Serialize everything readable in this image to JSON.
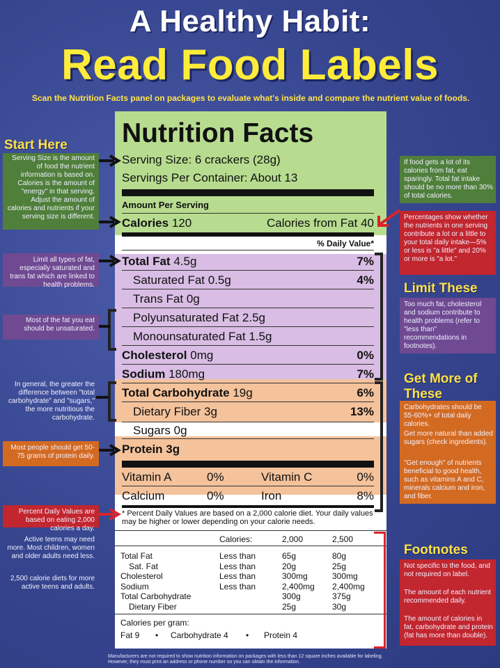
{
  "header": {
    "title_line1": "A Healthy Habit:",
    "title_line2": "Read Food Labels",
    "subtitle": "Scan the Nutrition Facts panel on packages to evaluate what's inside and compare the nutrient value of foods."
  },
  "label": {
    "title": "Nutrition Facts",
    "serving_size": "Serving Size:  6 crackers (28g)",
    "servings_per_container": "Servings Per Container:  About 13",
    "amount_per_serving": "Amount Per Serving",
    "calories_label": "Calories",
    "calories_value": "120",
    "calories_fat": "Calories from Fat 40",
    "daily_value_header": "% Daily Value*",
    "rows": {
      "total_fat": {
        "label": "Total Fat",
        "amount": "4.5g",
        "dv": "7%"
      },
      "saturated_fat": {
        "label": "Saturated Fat",
        "amount": "0.5g",
        "dv": "4%"
      },
      "trans_fat": {
        "label": "Trans Fat",
        "amount": "0g"
      },
      "poly_fat": {
        "label": "Polyunsaturated Fat",
        "amount": "2.5g"
      },
      "mono_fat": {
        "label": "Monounsaturated Fat",
        "amount": "1.5g"
      },
      "cholesterol": {
        "label": "Cholesterol",
        "amount": "0mg",
        "dv": "0%"
      },
      "sodium": {
        "label": "Sodium",
        "amount": "180mg",
        "dv": "7%"
      },
      "total_carb": {
        "label": "Total Carbohydrate",
        "amount": "19g",
        "dv": "6%"
      },
      "fiber": {
        "label": "Dietary Fiber",
        "amount": "3g",
        "dv": "13%"
      },
      "sugars": {
        "label": "Sugars",
        "amount": "0g"
      },
      "protein": {
        "label": "Protein",
        "amount": "3g"
      }
    },
    "vitamins": {
      "vit_a": {
        "label": "Vitamin A",
        "dv": "0%"
      },
      "vit_c": {
        "label": "Vitamin C",
        "dv": "0%"
      },
      "calcium": {
        "label": "Calcium",
        "dv": "0%"
      },
      "iron": {
        "label": "Iron",
        "dv": "8%"
      }
    },
    "footnote_text": "* Percent Daily Values are based on a 2,000 calorie diet. Your daily values may be higher or lower depending on your calorie needs.",
    "table": {
      "calories_label": "Calories:",
      "col1": "2,000",
      "col2": "2,500",
      "rows": [
        {
          "name": "Total Fat",
          "qual": "Less than",
          "a": "65g",
          "b": "80g"
        },
        {
          "name": "Sat. Fat",
          "qual": "Less than",
          "a": "20g",
          "b": "25g"
        },
        {
          "name": "Cholesterol",
          "qual": "Less than",
          "a": "300mg",
          "b": "300mg"
        },
        {
          "name": "Sodium",
          "qual": "Less than",
          "a": "2,400mg",
          "b": "2,400mg"
        },
        {
          "name": "Total Carbohydrate",
          "qual": "",
          "a": "300g",
          "b": "375g"
        },
        {
          "name": "Dietary Fiber",
          "qual": "",
          "a": "25g",
          "b": "30g"
        }
      ],
      "cal_per_gram": "Calories per gram:",
      "fat": "Fat 9",
      "carb": "Carbohydrate 4",
      "protein": "Protein 4",
      "dot": "•"
    }
  },
  "left": {
    "start_here": "Start Here",
    "serving_note": "Serving Size is the amount of food the nutrient information is based on. Calories is the amount of \"energy\" in that serving. Adjust the amount of calories and nutrients if your serving size is different.",
    "fat_note": "Limit all types of fat, especially saturated and trans fat which are linked to health problems.",
    "unsat_note": "Most of the fat you eat should be unsaturated.",
    "carb_note": "In general, the greater the difference between \"total carbohydrate\" and \"sugars,\" the more nutritious the carbohydrate.",
    "protein_note": "Most people should get 50-75 grams of protein daily.",
    "dv_note": "Percent Daily Values are based on eating 2,000 calories a day.",
    "teens_note": "Active teens may need more. Most children, women and older adults need less.",
    "cal2500_note": "2,500 calorie diets for more active teens and adults."
  },
  "right": {
    "calories_fat_note": "If food gets a lot of its calories from fat, eat sparingly. Total fat intake should be no more than 30% of total calories.",
    "percent_note": "Percentages show whether the nutrients in one serving contribute a lot or a little to your total daily intake—5% or less is \"a little\" and 20% or more is \"a lot.\"",
    "limit_head": "Limit These",
    "limit_note": "Too much fat, cholesterol and sodium contribute to health problems (refer to \"less than\" recommendations in footnotes).",
    "more_head": "Get More of These",
    "carb_note": "Carbohydrates should be 55-60%+ of total daily calories.",
    "sugar_note": "Get more natural than added sugars (check ingredients).",
    "enough_note": "\"Get enough\" of nutrients beneficial to good health, such as vitamins A and C, minerals calcium and iron, and fiber.",
    "foot_head": "Footnotes",
    "foot_note1": "Not specific to the food, and not required on label.",
    "foot_note2": "The amount of each nutrient recommended daily.",
    "foot_note3": "The amount of calories in fat, carbohydrate and protein (fat has more than double)."
  },
  "bottom_note": "Manufacturers are not required to show nutrition information on packages with less than 12 square inches available for labeling. However, they must print an address or phone number so you can obtain the information.",
  "colors": {
    "background": "#3b4a94",
    "title_yellow": "#ffec3a",
    "green": "#b7dc8f",
    "purple": "#d9bde4",
    "orange": "#f4c29b",
    "red": "#d9242c"
  }
}
